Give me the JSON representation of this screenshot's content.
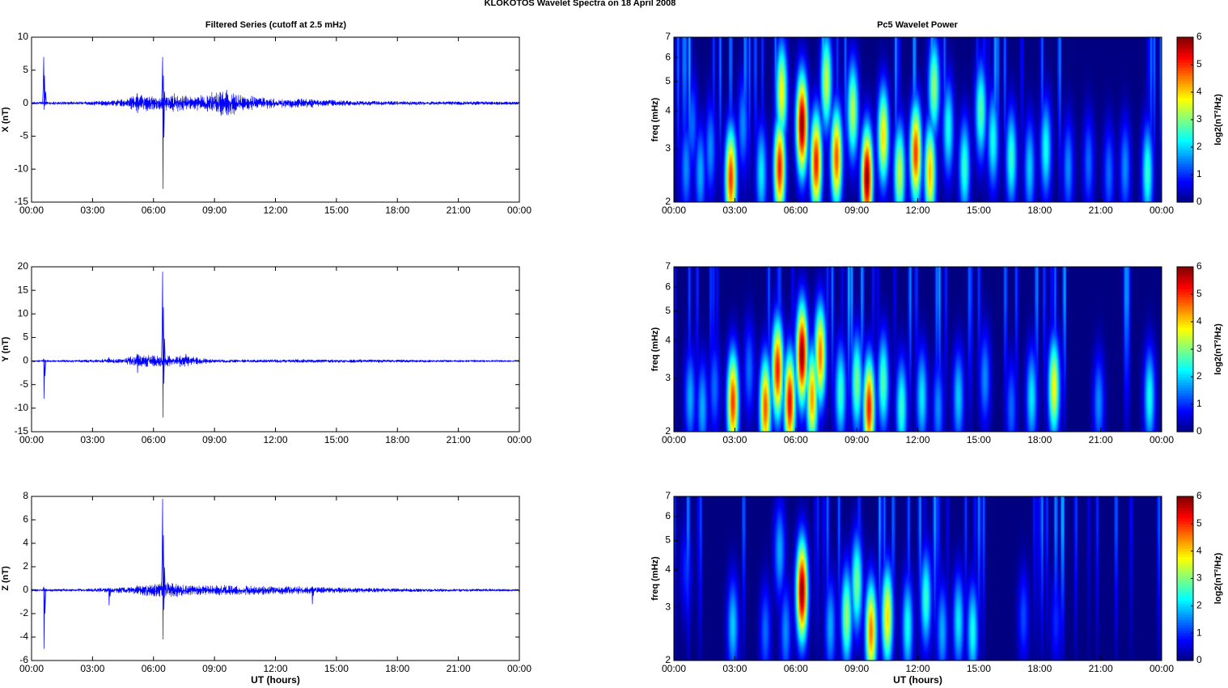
{
  "figure_title": "KLOKOTOS Wavelet Spectra on 18 April     2008",
  "left_title": "Filtered Series (cutoff at 2.5 mHz)",
  "right_title": "Pc5 Wavelet Power",
  "colors": {
    "line": "#0000ff",
    "axis": "#000000",
    "background": "#ffffff"
  },
  "colormap": "jet",
  "chart_data": [
    {
      "type": "line",
      "panel": "X",
      "ylabel": "X (nT)",
      "xlabel": "",
      "ylim": [
        -15,
        10
      ],
      "yticks": [
        -15,
        -10,
        -5,
        0,
        5,
        10
      ],
      "xticks": [
        "00:00",
        "03:00",
        "06:00",
        "09:00",
        "12:00",
        "15:00",
        "18:00",
        "21:00",
        "00:00"
      ],
      "xlim_hours": [
        0,
        24
      ],
      "spikes": [
        [
          0.6,
          7.0,
          -1.0
        ],
        [
          6.45,
          7.0,
          -13.0
        ],
        [
          5.2,
          1.5,
          -1.5
        ],
        [
          9.6,
          2.0,
          -1.8
        ],
        [
          13.8,
          0.6,
          -0.7
        ]
      ],
      "activity": [
        [
          0,
          0.15
        ],
        [
          1.0,
          0.2
        ],
        [
          2.5,
          0.2
        ],
        [
          4.5,
          0.5
        ],
        [
          5.3,
          1.2
        ],
        [
          6.2,
          0.8
        ],
        [
          7.0,
          1.2
        ],
        [
          8.0,
          0.8
        ],
        [
          9.5,
          1.7
        ],
        [
          10.5,
          1.0
        ],
        [
          12.0,
          0.6
        ],
        [
          14.0,
          0.5
        ],
        [
          16.0,
          0.3
        ],
        [
          19.0,
          0.25
        ],
        [
          24.0,
          0.2
        ]
      ]
    },
    {
      "type": "line",
      "panel": "Y",
      "ylabel": "Y (nT)",
      "xlabel": "",
      "ylim": [
        -15,
        20
      ],
      "yticks": [
        -15,
        -10,
        -5,
        0,
        5,
        10,
        15,
        20
      ],
      "xticks": [
        "00:00",
        "03:00",
        "06:00",
        "09:00",
        "12:00",
        "15:00",
        "18:00",
        "21:00",
        "00:00"
      ],
      "xlim_hours": [
        0,
        24
      ],
      "spikes": [
        [
          0.6,
          0.5,
          -8.0
        ],
        [
          6.45,
          19.0,
          -12.0
        ],
        [
          5.2,
          1.5,
          -2.5
        ],
        [
          7.6,
          1.5,
          -0.5
        ],
        [
          3.8,
          0.8,
          -0.3
        ]
      ],
      "activity": [
        [
          0,
          0.15
        ],
        [
          2.0,
          0.2
        ],
        [
          4.5,
          0.4
        ],
        [
          5.2,
          1.2
        ],
        [
          6.2,
          1.0
        ],
        [
          7.5,
          1.0
        ],
        [
          9.0,
          0.3
        ],
        [
          12.0,
          0.3
        ],
        [
          16.0,
          0.3
        ],
        [
          20.0,
          0.2
        ],
        [
          24.0,
          0.15
        ]
      ]
    },
    {
      "type": "line",
      "panel": "Z",
      "ylabel": "Z (nT)",
      "xlabel": "UT (hours)",
      "ylim": [
        -6,
        8
      ],
      "yticks": [
        -6,
        -4,
        -2,
        0,
        2,
        4,
        6,
        8
      ],
      "xticks": [
        "00:00",
        "03:00",
        "06:00",
        "09:00",
        "12:00",
        "15:00",
        "18:00",
        "21:00",
        "00:00"
      ],
      "xlim_hours": [
        0,
        24
      ],
      "spikes": [
        [
          0.6,
          0.3,
          -5.0
        ],
        [
          6.45,
          7.8,
          -4.2
        ],
        [
          3.8,
          0.2,
          -1.3
        ],
        [
          13.8,
          0.3,
          -1.2
        ],
        [
          5.2,
          0.4,
          -0.3
        ]
      ],
      "activity": [
        [
          0,
          0.08
        ],
        [
          2.5,
          0.1
        ],
        [
          5.0,
          0.25
        ],
        [
          6.5,
          0.6
        ],
        [
          8.0,
          0.35
        ],
        [
          9.5,
          0.35
        ],
        [
          12.0,
          0.3
        ],
        [
          14.0,
          0.25
        ],
        [
          17.0,
          0.15
        ],
        [
          21.0,
          0.1
        ],
        [
          24.0,
          0.08
        ]
      ]
    },
    {
      "type": "heatmap",
      "panel": "X",
      "ylabel": "freq (mHz)",
      "xlabel": "",
      "ylim": [
        2,
        7
      ],
      "yticks": [
        2,
        3,
        4,
        5,
        6,
        7
      ],
      "yscale": "log",
      "xticks": [
        "00:00",
        "03:00",
        "06:00",
        "09:00",
        "12:00",
        "15:00",
        "18:00",
        "21:00",
        "00:00"
      ],
      "xlim_hours": [
        0,
        24
      ],
      "colorbar": {
        "label": "log2(nT²/Hz)",
        "range": [
          0,
          6
        ],
        "ticks": [
          0,
          1,
          2,
          3,
          4,
          5,
          6
        ]
      },
      "blobs": [
        [
          0.6,
          2.6,
          1.6
        ],
        [
          0.9,
          3.6,
          1.4
        ],
        [
          1.3,
          2.5,
          1.8
        ],
        [
          1.8,
          3.0,
          1.6
        ],
        [
          2.8,
          2.4,
          5.0
        ],
        [
          3.4,
          3.6,
          1.6
        ],
        [
          4.3,
          2.5,
          2.2
        ],
        [
          5.2,
          2.6,
          5.2
        ],
        [
          5.3,
          4.6,
          3.8
        ],
        [
          6.3,
          3.6,
          6.0
        ],
        [
          7.0,
          2.7,
          5.2
        ],
        [
          7.5,
          5.0,
          3.5
        ],
        [
          8.0,
          2.8,
          4.8
        ],
        [
          8.8,
          4.0,
          3.4
        ],
        [
          9.5,
          2.4,
          6.0
        ],
        [
          10.3,
          3.3,
          4.0
        ],
        [
          11.1,
          2.5,
          3.5
        ],
        [
          11.9,
          2.9,
          5.0
        ],
        [
          12.6,
          2.5,
          4.2
        ],
        [
          12.8,
          4.8,
          3.2
        ],
        [
          13.5,
          3.5,
          2.4
        ],
        [
          14.3,
          2.6,
          2.6
        ],
        [
          15.1,
          4.0,
          2.8
        ],
        [
          15.7,
          3.2,
          2.4
        ],
        [
          16.6,
          2.8,
          2.6
        ],
        [
          17.5,
          2.6,
          2.0
        ],
        [
          18.3,
          3.0,
          2.4
        ],
        [
          19.4,
          2.6,
          1.6
        ],
        [
          20.4,
          2.7,
          1.4
        ],
        [
          21.4,
          2.5,
          1.4
        ],
        [
          22.2,
          2.6,
          1.6
        ],
        [
          23.3,
          2.5,
          2.6
        ]
      ]
    },
    {
      "type": "heatmap",
      "panel": "Y",
      "ylabel": "freq (mHz)",
      "xlabel": "",
      "ylim": [
        2,
        7
      ],
      "yticks": [
        2,
        3,
        4,
        5,
        6,
        7
      ],
      "yscale": "log",
      "xticks": [
        "00:00",
        "03:00",
        "06:00",
        "09:00",
        "12:00",
        "15:00",
        "18:00",
        "21:00",
        "00:00"
      ],
      "xlim_hours": [
        0,
        24
      ],
      "colorbar": {
        "label": "log2(nT²/Hz)",
        "range": [
          0,
          6
        ],
        "ticks": [
          0,
          1,
          2,
          3,
          4,
          5,
          6
        ]
      },
      "blobs": [
        [
          0.8,
          2.6,
          1.8
        ],
        [
          1.4,
          2.4,
          1.8
        ],
        [
          2.0,
          2.8,
          1.4
        ],
        [
          2.9,
          2.5,
          5.0
        ],
        [
          3.7,
          3.2,
          1.4
        ],
        [
          4.5,
          2.4,
          4.8
        ],
        [
          5.1,
          3.2,
          5.2
        ],
        [
          5.7,
          2.5,
          5.4
        ],
        [
          6.3,
          3.6,
          6.0
        ],
        [
          6.8,
          2.6,
          4.4
        ],
        [
          7.2,
          3.6,
          4.6
        ],
        [
          8.2,
          2.7,
          2.6
        ],
        [
          9.0,
          2.9,
          3.0
        ],
        [
          9.6,
          2.4,
          5.2
        ],
        [
          10.3,
          2.9,
          2.8
        ],
        [
          11.2,
          2.4,
          2.6
        ],
        [
          12.2,
          2.6,
          2.2
        ],
        [
          13.0,
          2.4,
          1.6
        ],
        [
          14.0,
          2.6,
          2.0
        ],
        [
          15.3,
          3.0,
          1.6
        ],
        [
          16.6,
          2.4,
          1.4
        ],
        [
          17.6,
          2.6,
          2.2
        ],
        [
          18.7,
          2.8,
          3.8
        ],
        [
          20.9,
          2.5,
          1.6
        ],
        [
          23.4,
          2.6,
          2.4
        ]
      ]
    },
    {
      "type": "heatmap",
      "panel": "Z",
      "ylabel": "freq (mHz)",
      "xlabel": "UT (hours)",
      "ylim": [
        2,
        7
      ],
      "yticks": [
        2,
        3,
        4,
        5,
        6,
        7
      ],
      "yscale": "log",
      "xticks": [
        "00:00",
        "03:00",
        "06:00",
        "09:00",
        "12:00",
        "15:00",
        "18:00",
        "21:00",
        "00:00"
      ],
      "xlim_hours": [
        0,
        24
      ],
      "colorbar": {
        "label": "log2(nT²/Hz)",
        "range": [
          0,
          6
        ],
        "ticks": [
          0,
          1,
          2,
          3,
          4,
          5,
          6
        ]
      },
      "blobs": [
        [
          0.6,
          4.0,
          1.0
        ],
        [
          2.9,
          2.6,
          2.0
        ],
        [
          4.5,
          2.5,
          1.4
        ],
        [
          5.2,
          4.6,
          1.8
        ],
        [
          5.5,
          2.5,
          1.6
        ],
        [
          6.3,
          3.4,
          6.0
        ],
        [
          7.7,
          2.6,
          1.8
        ],
        [
          8.5,
          2.8,
          3.2
        ],
        [
          9.0,
          3.6,
          3.0
        ],
        [
          9.7,
          2.5,
          4.6
        ],
        [
          10.5,
          2.8,
          4.0
        ],
        [
          11.5,
          2.6,
          2.4
        ],
        [
          12.4,
          3.2,
          2.6
        ],
        [
          13.2,
          2.5,
          1.8
        ],
        [
          14.0,
          2.7,
          2.2
        ],
        [
          14.7,
          2.5,
          2.4
        ],
        [
          17.2,
          2.8,
          1.2
        ],
        [
          18.8,
          2.7,
          1.0
        ]
      ]
    }
  ]
}
